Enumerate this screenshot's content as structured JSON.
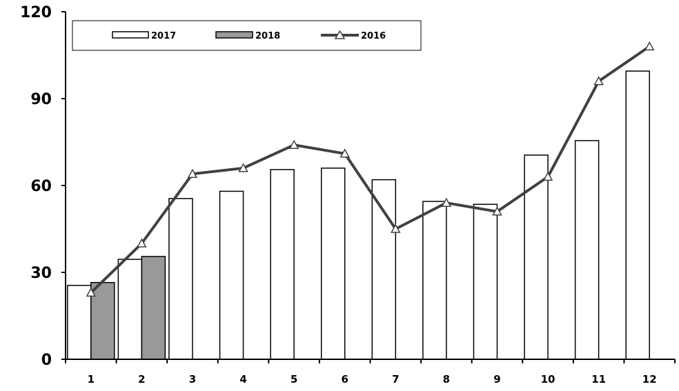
{
  "chart_data": {
    "type": "bar",
    "categories": [
      "1",
      "2",
      "3",
      "4",
      "5",
      "6",
      "7",
      "8",
      "9",
      "10",
      "11",
      "12"
    ],
    "series": [
      {
        "name": "2017",
        "type": "bar",
        "color": "#ffffff",
        "values": [
          25.5,
          34.5,
          55.5,
          58,
          65.5,
          66,
          62,
          54.5,
          53.5,
          70.5,
          75.5,
          99.5
        ]
      },
      {
        "name": "2018",
        "type": "bar",
        "color": "#999999",
        "values": [
          26.5,
          35.5,
          null,
          null,
          null,
          null,
          null,
          null,
          null,
          null,
          null,
          null
        ]
      },
      {
        "name": "2016",
        "type": "line",
        "color": "#404040",
        "marker": "triangle",
        "values": [
          23,
          40,
          64,
          66,
          74,
          71,
          45,
          54,
          51,
          63,
          96,
          108
        ]
      }
    ],
    "yticks": [
      "0",
      "30",
      "60",
      "90",
      "120"
    ],
    "ylim": [
      0,
      120
    ],
    "legend_position": "top-left",
    "grid": false
  }
}
